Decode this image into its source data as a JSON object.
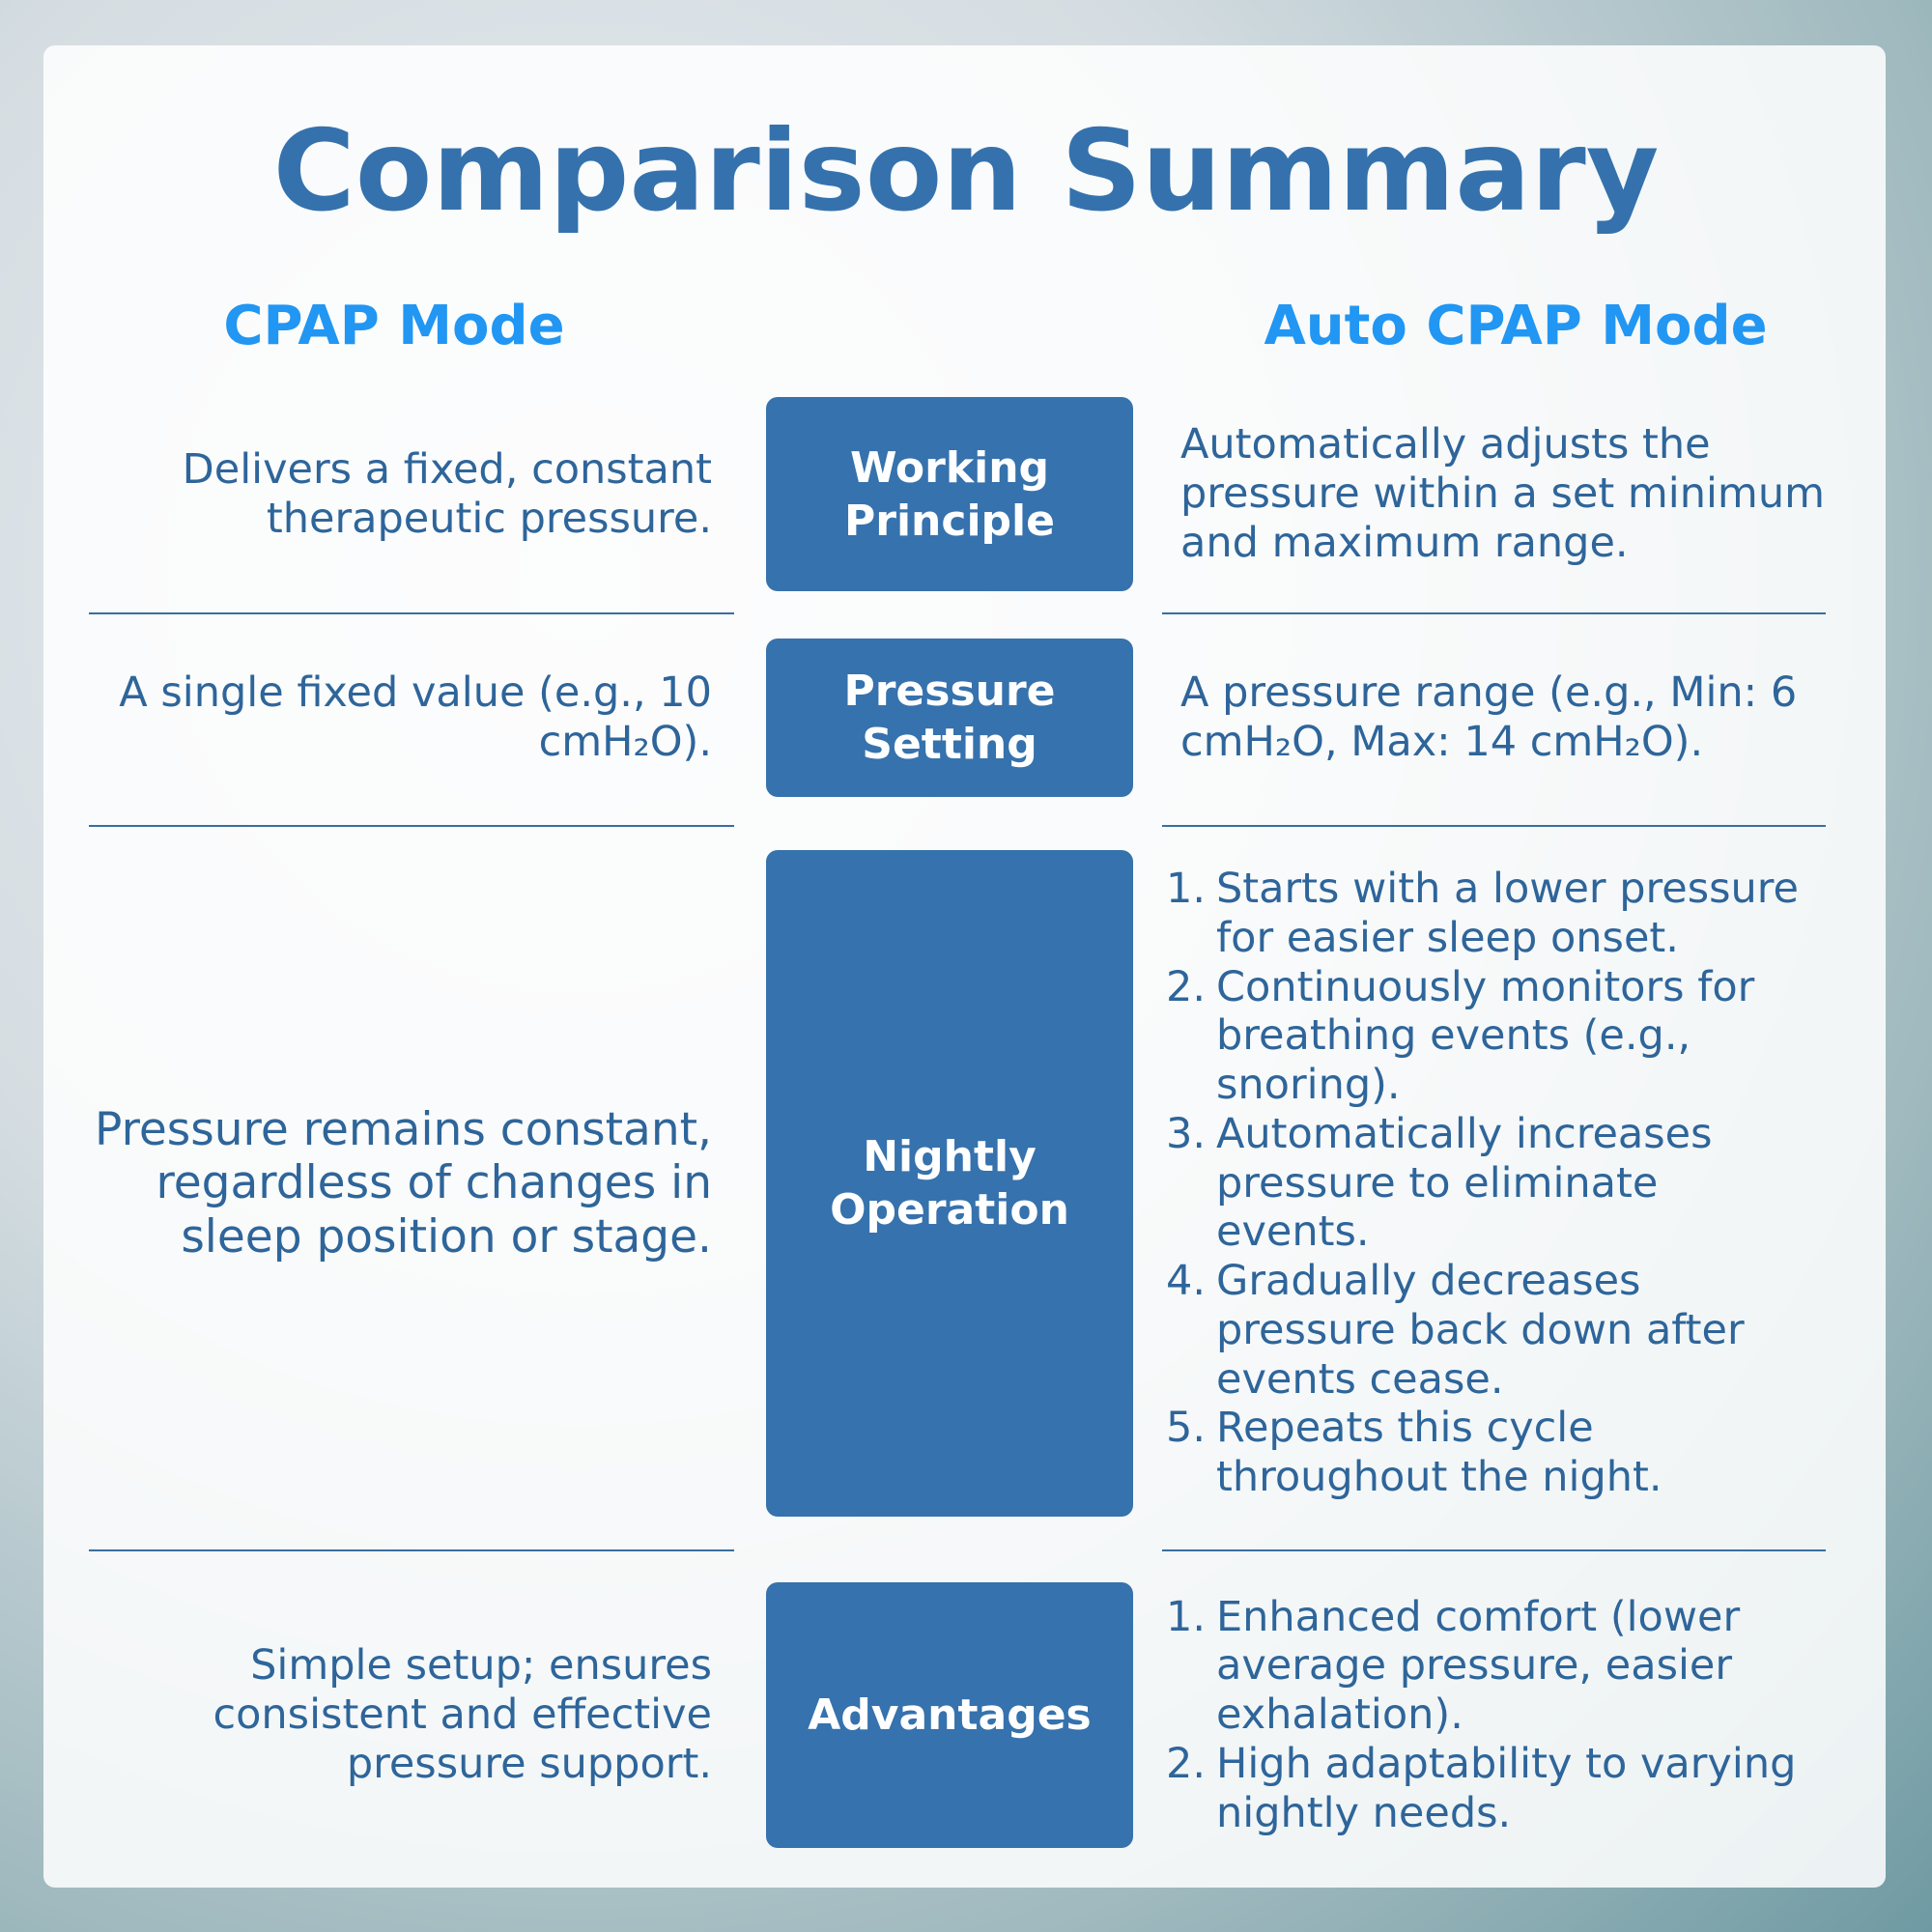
{
  "title": "Comparison Summary",
  "columns": {
    "left": "CPAP Mode",
    "right": "Auto CPAP Mode"
  },
  "rows": [
    {
      "label": "Working Principle",
      "left": "Delivers a fixed, constant therapeutic pressure.",
      "right": "Automatically adjusts the pressure within a set minimum and maximum range."
    },
    {
      "label": "Pressure Setting",
      "left": "A single fixed value (e.g., 10 cmH₂O).",
      "right": "A pressure range (e.g., Min: 6 cmH₂O, Max: 14 cmH₂O)."
    },
    {
      "label": "Nightly Operation",
      "left": "Pressure remains constant, regardless of changes in sleep position or stage.",
      "right_items": [
        {
          "number": "1.",
          "text": "Starts with a lower pressure for easier sleep onset."
        },
        {
          "number": "2.",
          "text": "Continuously monitors for breathing events (e.g., snoring)."
        },
        {
          "number": "3.",
          "text": "Automatically increases pressure to eliminate events."
        },
        {
          "number": "4.",
          "text": "Gradually decreases pressure back down after events cease."
        },
        {
          "number": "5.",
          "text": "Repeats this cycle throughout the night."
        }
      ]
    },
    {
      "label": "Advantages",
      "left": "Simple setup; ensures consistent and effective pressure support.",
      "right_items": [
        {
          "number": "1.",
          "text": "Enhanced comfort (lower average pressure, easier exhalation)."
        },
        {
          "number": "2.",
          "text": "High adaptability to varying nightly needs."
        }
      ]
    }
  ]
}
